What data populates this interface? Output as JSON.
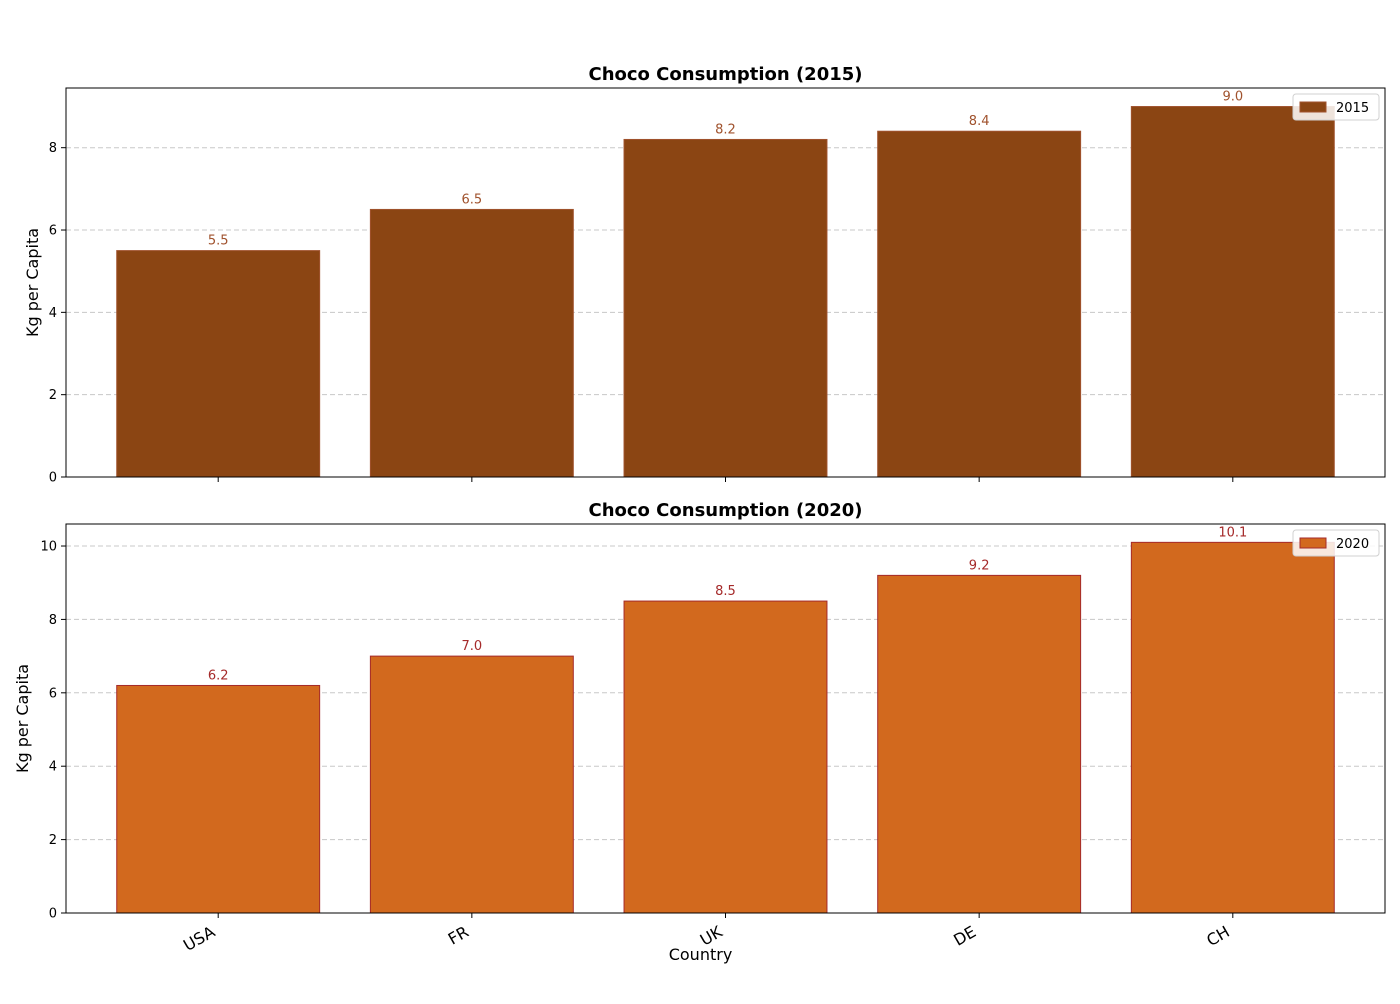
{
  "chart_data": [
    {
      "type": "bar",
      "title": "Choco Consumption (2015)",
      "ylabel": "Kg per Capita",
      "xlabel": "",
      "categories": [
        "USA",
        "FR",
        "UK",
        "DE",
        "CH"
      ],
      "series": [
        {
          "name": "2015",
          "values": [
            5.5,
            6.5,
            8.2,
            8.4,
            9.0
          ]
        }
      ],
      "data_labels": [
        "5.5",
        "6.5",
        "8.2",
        "8.4",
        "9.0"
      ],
      "ylim": [
        0,
        9.45
      ],
      "yticks": [
        0,
        2,
        4,
        6,
        8
      ],
      "grid": "y-dashed",
      "legend": "top-right",
      "show_xtick_labels": false,
      "colors": {
        "bar": "#8b4513",
        "edge": "#a0522d",
        "label": "#a0522d"
      }
    },
    {
      "type": "bar",
      "title": "Choco Consumption (2020)",
      "ylabel": "Kg per Capita",
      "xlabel": "Country",
      "categories": [
        "USA",
        "FR",
        "UK",
        "DE",
        "CH"
      ],
      "series": [
        {
          "name": "2020",
          "values": [
            6.2,
            7.0,
            8.5,
            9.2,
            10.1
          ]
        }
      ],
      "data_labels": [
        "6.2",
        "7.0",
        "8.5",
        "9.2",
        "10.1"
      ],
      "ylim": [
        0,
        10.6
      ],
      "yticks": [
        0,
        2,
        4,
        6,
        8,
        10
      ],
      "grid": "y-dashed",
      "legend": "top-right",
      "show_xtick_labels": true,
      "colors": {
        "bar": "#d2691e",
        "edge": "#a52a2a",
        "label": "#a52a2a"
      }
    }
  ]
}
